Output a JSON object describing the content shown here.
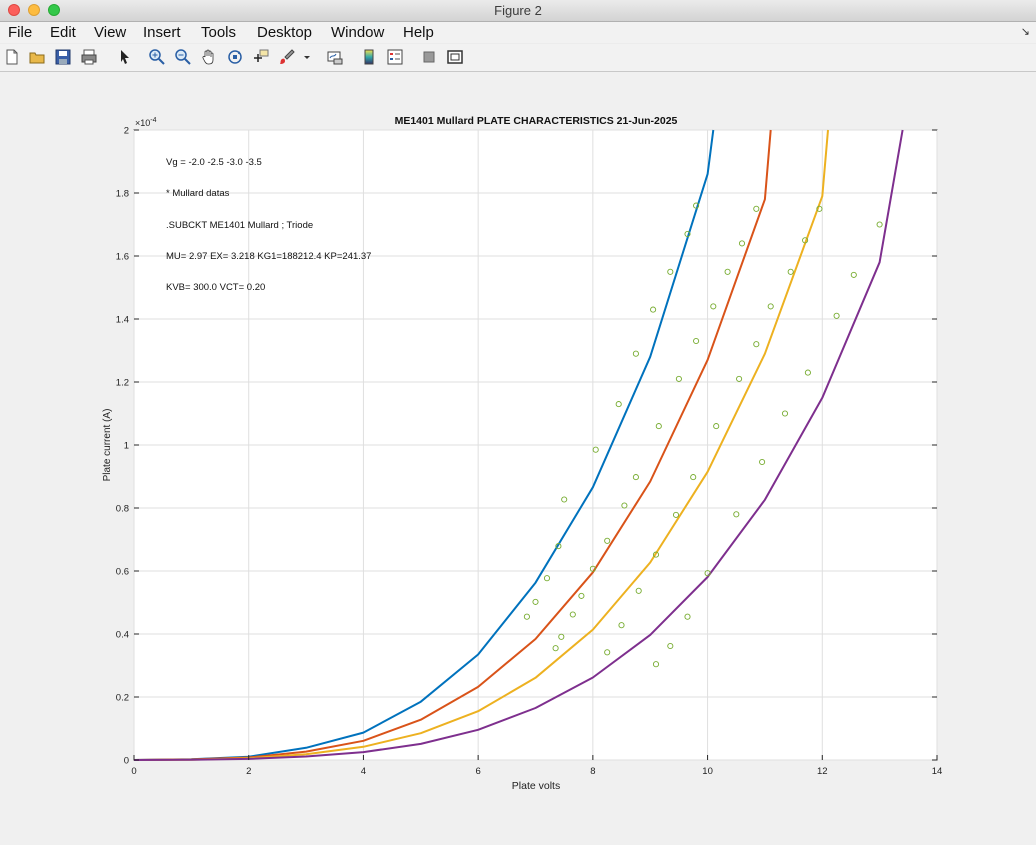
{
  "window": {
    "title": "Figure 2"
  },
  "menu": [
    "File",
    "Edit",
    "View",
    "Insert",
    "Tools",
    "Desktop",
    "Window",
    "Help"
  ],
  "toolbar": [
    "new-figure-icon",
    "open-file-icon",
    "save-icon",
    "print-icon",
    "pointer-icon",
    "zoom-in-icon",
    "zoom-out-icon",
    "pan-hand-icon",
    "rotate-3d-icon",
    "data-cursor-icon",
    "brush-icon",
    "brush-dropdown-icon",
    "link-plot-icon",
    "colorbar-icon",
    "legend-icon",
    "hide-plot-tools-icon",
    "show-plot-tools-icon"
  ],
  "chart_data": {
    "type": "line",
    "title": "ME1401 Mullard PLATE CHARACTERISTICS  21-Jun-2025",
    "xlabel": "Plate volts",
    "ylabel": "Plate current (A)",
    "xlim": [
      0,
      14
    ],
    "ylim": [
      0,
      0.0002
    ],
    "y_exponent_label": "×10",
    "y_exponent_power": "-4",
    "y_exponent": -4,
    "xticks": [
      0,
      2,
      4,
      6,
      8,
      10,
      12,
      14
    ],
    "yticks": [
      0,
      0.2,
      0.4,
      0.6,
      0.8,
      1,
      1.2,
      1.4,
      1.6,
      1.8,
      2
    ],
    "grid": true,
    "annotations": [
      "Vg =  -2.0  -2.5  -3.0  -3.5",
      "* Mullard datas",
      ".SUBCKT ME1401 Mullard ;  Triode",
      "MU= 2.97  EX= 3.218  KG1=188212.4  KP=241.37",
      "KVB= 300.0  VCT=  0.20"
    ],
    "series": [
      {
        "color": "#0072bd",
        "x": [
          0,
          1,
          2,
          3,
          4,
          5,
          6,
          7,
          8,
          9,
          10,
          10.1
        ],
        "y": [
          0,
          2.29e-07,
          1.06e-06,
          3.87e-06,
          8.7e-06,
          1.85e-05,
          3.35e-05,
          5.63e-05,
          8.66e-05,
          0.000128,
          0.000186,
          0.0002
        ]
      },
      {
        "color": "#d95319",
        "x": [
          0,
          1,
          2,
          3,
          4,
          5,
          6,
          7,
          8,
          9,
          10,
          11,
          11.1
        ],
        "y": [
          0,
          1.77e-07,
          7.9e-07,
          2.67e-06,
          6.1e-06,
          1.28e-05,
          2.32e-05,
          3.84e-05,
          5.96e-05,
          8.84e-05,
          0.000127,
          0.000178,
          0.0002
        ]
      },
      {
        "color": "#edb120",
        "x": [
          0,
          1,
          2,
          3,
          4,
          5,
          6,
          7,
          8,
          9,
          10,
          11,
          12,
          12.1
        ],
        "y": [
          0,
          1.08e-07,
          5.8e-07,
          1.85e-06,
          4.2e-06,
          8.5e-06,
          1.55e-05,
          2.61e-05,
          4.14e-05,
          6.27e-05,
          9.15e-05,
          0.000129,
          0.000179,
          0.0002
        ]
      },
      {
        "color": "#7e2f8e",
        "x": [
          0,
          1,
          2,
          3,
          4,
          5,
          6,
          7,
          8,
          9,
          10,
          11,
          12,
          13,
          13.4
        ],
        "y": [
          0,
          5.1e-08,
          3.6e-07,
          1.12e-06,
          2.5e-06,
          5.1e-06,
          9.6e-06,
          1.65e-05,
          2.62e-05,
          3.97e-05,
          5.81e-05,
          8.26e-05,
          0.000115,
          0.000158,
          0.0002
        ]
      }
    ],
    "markers": {
      "name": "* Mullard datas",
      "color": "#77ac30",
      "points": [
        [
          6.85,
          4.55e-05
        ],
        [
          7.0,
          5.02e-05
        ],
        [
          7.2,
          5.77e-05
        ],
        [
          7.4,
          6.79e-05
        ],
        [
          7.5,
          8.27e-05
        ],
        [
          8.05,
          9.85e-05
        ],
        [
          8.45,
          0.000113
        ],
        [
          8.75,
          0.000129
        ],
        [
          9.05,
          0.000143
        ],
        [
          9.35,
          0.000155
        ],
        [
          9.65,
          0.000167
        ],
        [
          9.8,
          0.000176
        ],
        [
          7.35,
          3.55e-05
        ],
        [
          7.45,
          3.91e-05
        ],
        [
          7.65,
          4.62e-05
        ],
        [
          7.8,
          5.21e-05
        ],
        [
          8.0,
          6.07e-05
        ],
        [
          8.25,
          6.96e-05
        ],
        [
          8.55,
          8.08e-05
        ],
        [
          8.75,
          8.98e-05
        ],
        [
          9.15,
          0.000106
        ],
        [
          9.5,
          0.000121
        ],
        [
          9.8,
          0.000133
        ],
        [
          10.1,
          0.000144
        ],
        [
          10.35,
          0.000155
        ],
        [
          10.6,
          0.000164
        ],
        [
          10.85,
          0.000175
        ],
        [
          8.25,
          3.42e-05
        ],
        [
          8.5,
          4.28e-05
        ],
        [
          8.8,
          5.37e-05
        ],
        [
          9.1,
          6.52e-05
        ],
        [
          9.45,
          7.78e-05
        ],
        [
          9.75,
          8.98e-05
        ],
        [
          10.15,
          0.000106
        ],
        [
          10.55,
          0.000121
        ],
        [
          10.85,
          0.000132
        ],
        [
          11.1,
          0.000144
        ],
        [
          11.45,
          0.000155
        ],
        [
          11.7,
          0.000165
        ],
        [
          11.95,
          0.000175
        ],
        [
          9.1,
          3.04e-05
        ],
        [
          9.35,
          3.62e-05
        ],
        [
          9.65,
          4.55e-05
        ],
        [
          10.0,
          5.93e-05
        ],
        [
          10.5,
          7.8e-05
        ],
        [
          10.95,
          9.46e-05
        ],
        [
          11.35,
          0.00011
        ],
        [
          11.75,
          0.000123
        ],
        [
          12.25,
          0.000141
        ],
        [
          12.55,
          0.000154
        ],
        [
          13.0,
          0.00017
        ]
      ]
    }
  }
}
